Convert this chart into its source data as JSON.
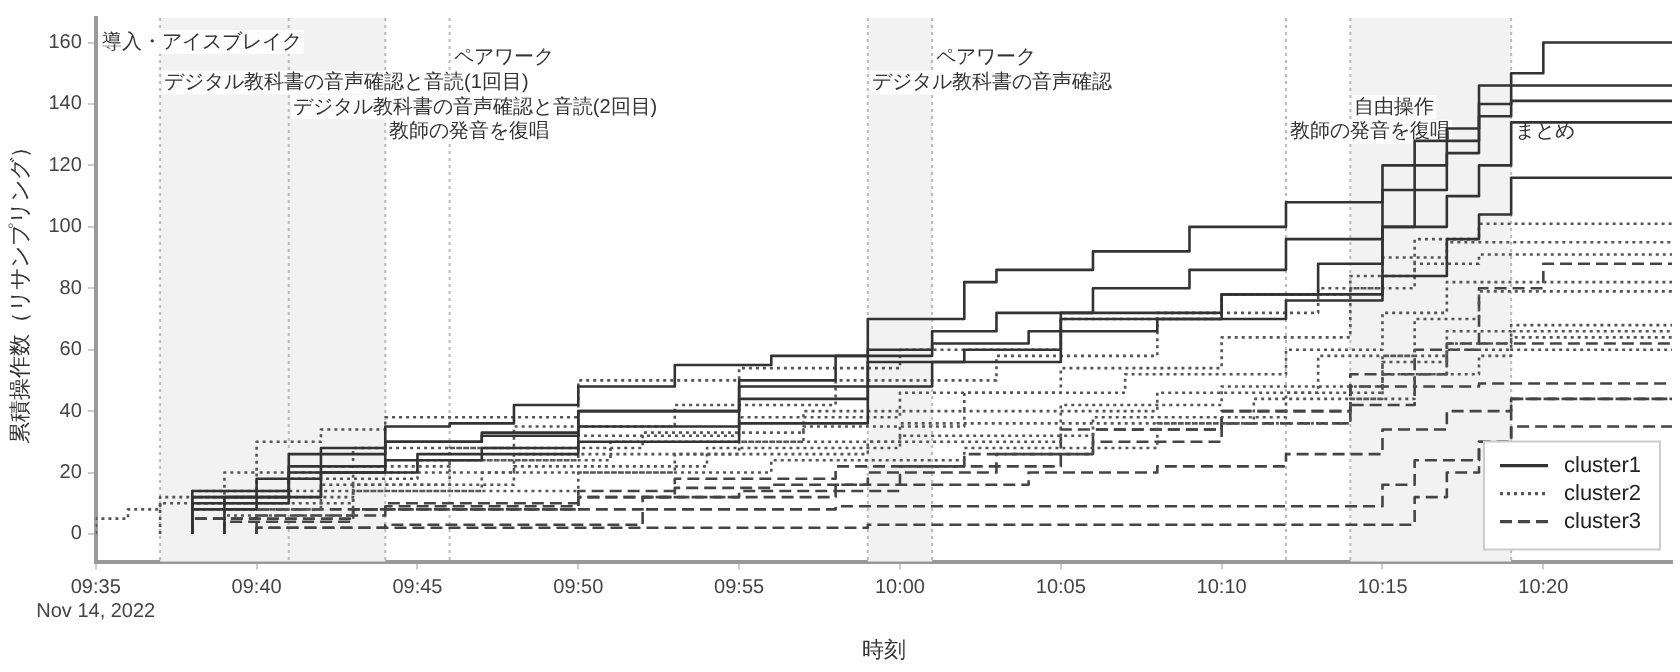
{
  "chart_data": {
    "type": "step",
    "xlabel": "時刻",
    "ylabel": "累積操作数（リサンプリング）",
    "xlim": [
      "2022-11-14T09:35",
      "2022-11-14T10:24"
    ],
    "xticks": [
      {
        "value": "2022-11-14T09:35",
        "label": "09:35\nNov 14, 2022"
      },
      {
        "value": "2022-11-14T09:40",
        "label": "09:40"
      },
      {
        "value": "2022-11-14T09:45",
        "label": "09:45"
      },
      {
        "value": "2022-11-14T09:50",
        "label": "09:50"
      },
      {
        "value": "2022-11-14T09:55",
        "label": "09:55"
      },
      {
        "value": "2022-11-14T10:00",
        "label": "10:00"
      },
      {
        "value": "2022-11-14T10:05",
        "label": "10:05"
      },
      {
        "value": "2022-11-14T10:10",
        "label": "10:10"
      },
      {
        "value": "2022-11-14T10:15",
        "label": "10:15"
      },
      {
        "value": "2022-11-14T10:20",
        "label": "10:20"
      }
    ],
    "ylim": [
      -9,
      168
    ],
    "yticks": [
      0,
      20,
      40,
      60,
      80,
      100,
      120,
      140,
      160
    ],
    "grid": false,
    "legend": "bottom right",
    "marker": "none",
    "bands": [
      {
        "axis": "x",
        "from": "2022-11-14T09:37",
        "to": "2022-11-14T09:44",
        "color": "#f2f2f2"
      },
      {
        "axis": "x",
        "from": "2022-11-14T09:59",
        "to": "2022-11-14T10:01",
        "color": "#f2f2f2"
      },
      {
        "axis": "x",
        "from": "2022-11-14T10:14",
        "to": "2022-11-14T10:19",
        "color": "#f2f2f2"
      }
    ],
    "ref_lines": [
      {
        "axis": "x",
        "value": "2022-11-14T09:37",
        "color": "#bbbbbb",
        "line_style": "dotted"
      },
      {
        "axis": "x",
        "value": "2022-11-14T09:41",
        "color": "#bbbbbb",
        "line_style": "dotted"
      },
      {
        "axis": "x",
        "value": "2022-11-14T09:44",
        "color": "#bbbbbb",
        "line_style": "dotted"
      },
      {
        "axis": "x",
        "value": "2022-11-14T09:46",
        "color": "#bbbbbb",
        "line_style": "dotted"
      },
      {
        "axis": "x",
        "value": "2022-11-14T09:59",
        "color": "#bbbbbb",
        "line_style": "dotted"
      },
      {
        "axis": "x",
        "value": "2022-11-14T10:01",
        "color": "#bbbbbb",
        "line_style": "dotted"
      },
      {
        "axis": "x",
        "value": "2022-11-14T10:12",
        "color": "#bbbbbb",
        "line_style": "dotted"
      },
      {
        "axis": "x",
        "value": "2022-11-14T10:14",
        "color": "#bbbbbb",
        "line_style": "dotted"
      },
      {
        "axis": "x",
        "value": "2022-11-14T10:19",
        "color": "#bbbbbb",
        "line_style": "dotted"
      }
    ],
    "annotations": [
      "導入・アイスブレイク",
      {
        "text": "デジタル教科書の音声確認と音読(1回目)",
        "x": "2022-11-14T09:37",
        "y": 147
      },
      {
        "text": "デジタル教科書の音声確認と音読(2回目)",
        "x": "2022-11-14T09:41",
        "y": 139
      },
      {
        "text": "教師の発音を復唱",
        "x": "2022-11-14T09:44",
        "y": 131
      },
      {
        "text": "ペアワーク",
        "x": "2022-11-14T09:46",
        "y": 155
      },
      {
        "text": "ペアワーク",
        "x": "2022-11-14T10:01",
        "y": 155
      },
      {
        "text": "デジタル教科書の音声確認",
        "x": "2022-11-14T09:59",
        "y": 147
      },
      {
        "text": "自由操作",
        "x": "2022-11-14T10:14",
        "y": 139
      },
      {
        "text": "教師の発音を復唱",
        "x": "2022-11-14T10:12",
        "y": 131
      },
      {
        "text": "まとめ",
        "x": "2022-11-14T10:19",
        "y": 131
      }
    ],
    "series": [
      {
        "name": "cluster1",
        "color": "#333333",
        "line_style": "solid",
        "x": [
          "2022-11-14T09:38",
          "2022-11-14T09:40",
          "2022-11-14T09:42",
          "2022-11-14T09:44",
          "2022-11-14T09:46",
          "2022-11-14T09:48",
          "2022-11-14T09:50",
          "2022-11-14T09:53",
          "2022-11-14T09:56",
          "2022-11-14T09:59",
          "2022-11-14T10:02",
          "2022-11-14T10:03",
          "2022-11-14T10:06",
          "2022-11-14T10:09",
          "2022-11-14T10:12",
          "2022-11-14T10:15",
          "2022-11-14T10:17",
          "2022-11-14T10:18",
          "2022-11-14T10:19",
          "2022-11-14T10:20",
          "2022-11-14T10:22",
          "2022-11-14T10:24"
        ],
        "values": [
          0,
          8,
          18,
          28,
          35,
          36,
          42,
          48,
          55,
          58,
          70,
          82,
          86,
          92,
          100,
          108,
          120,
          132,
          146,
          150,
          160,
          160
        ]
      },
      {
        "color": "#333333",
        "line_style": "solid",
        "x": [
          "2022-11-14T09:38",
          "2022-11-14T09:41",
          "2022-11-14T09:44",
          "2022-11-14T09:47",
          "2022-11-14T09:50",
          "2022-11-14T09:55",
          "2022-11-14T09:59",
          "2022-11-14T10:01",
          "2022-11-14T10:03",
          "2022-11-14T10:06",
          "2022-11-14T10:09",
          "2022-11-14T10:12",
          "2022-11-14T10:15",
          "2022-11-14T10:16",
          "2022-11-14T10:18",
          "2022-11-14T10:19",
          "2022-11-14T10:20",
          "2022-11-14T10:24"
        ],
        "values": [
          0,
          12,
          22,
          30,
          32,
          40,
          48,
          60,
          66,
          72,
          80,
          86,
          96,
          112,
          128,
          140,
          146,
          146
        ]
      },
      {
        "color": "#333333",
        "line_style": "solid",
        "x": [
          "2022-11-14T09:38",
          "2022-11-14T09:41",
          "2022-11-14T09:44",
          "2022-11-14T09:47",
          "2022-11-14T09:50",
          "2022-11-14T09:55",
          "2022-11-14T09:59",
          "2022-11-14T10:02",
          "2022-11-14T10:05",
          "2022-11-14T10:10",
          "2022-11-14T10:13",
          "2022-11-14T10:15",
          "2022-11-14T10:16",
          "2022-11-14T10:17",
          "2022-11-14T10:18",
          "2022-11-14T10:19",
          "2022-11-14T10:20",
          "2022-11-14T10:24"
        ],
        "values": [
          0,
          10,
          20,
          24,
          28,
          35,
          44,
          56,
          60,
          72,
          78,
          88,
          100,
          112,
          124,
          136,
          141,
          141
        ]
      },
      {
        "color": "#333333",
        "line_style": "solid",
        "x": [
          "2022-11-14T09:38",
          "2022-11-14T09:41",
          "2022-11-14T09:44",
          "2022-11-14T09:47",
          "2022-11-14T09:50",
          "2022-11-14T09:55",
          "2022-11-14T09:58",
          "2022-11-14T10:01",
          "2022-11-14T10:04",
          "2022-11-14T10:08",
          "2022-11-14T10:12",
          "2022-11-14T10:15",
          "2022-11-14T10:17",
          "2022-11-14T10:18",
          "2022-11-14T10:19",
          "2022-11-14T10:20",
          "2022-11-14T10:24"
        ],
        "values": [
          0,
          14,
          26,
          30,
          33,
          40,
          50,
          58,
          62,
          66,
          70,
          76,
          100,
          110,
          120,
          134,
          134
        ]
      },
      {
        "color": "#333333",
        "line_style": "solid",
        "x": [
          "2022-11-14T09:39",
          "2022-11-14T09:42",
          "2022-11-14T09:45",
          "2022-11-14T09:50",
          "2022-11-14T09:55",
          "2022-11-14T09:59",
          "2022-11-14T10:01",
          "2022-11-14T10:05",
          "2022-11-14T10:10",
          "2022-11-14T10:15",
          "2022-11-14T10:17",
          "2022-11-14T10:18",
          "2022-11-14T10:19",
          "2022-11-14T10:20",
          "2022-11-14T10:24"
        ],
        "values": [
          0,
          12,
          20,
          26,
          30,
          36,
          48,
          56,
          70,
          78,
          84,
          96,
          104,
          116,
          116
        ]
      },
      {
        "name": "cluster2",
        "color": "#555555",
        "line_style": "dotted",
        "x": [
          "2022-11-14T09:35",
          "2022-11-14T09:36",
          "2022-11-14T09:37",
          "2022-11-14T09:39",
          "2022-11-14T09:40",
          "2022-11-14T09:42",
          "2022-11-14T09:44",
          "2022-11-14T09:50",
          "2022-11-14T09:55",
          "2022-11-14T10:00",
          "2022-11-14T10:05",
          "2022-11-14T10:10",
          "2022-11-14T10:14",
          "2022-11-14T10:16",
          "2022-11-14T10:18",
          "2022-11-14T10:19",
          "2022-11-14T10:24"
        ],
        "values": [
          0,
          5,
          8,
          10,
          20,
          30,
          34,
          38,
          50,
          54,
          60,
          70,
          78,
          84,
          96,
          101,
          101
        ]
      },
      {
        "color": "#555555",
        "line_style": "dotted",
        "x": [
          "2022-11-14T09:37",
          "2022-11-14T09:40",
          "2022-11-14T09:43",
          "2022-11-14T09:48",
          "2022-11-14T09:53",
          "2022-11-14T09:58",
          "2022-11-14T10:03",
          "2022-11-14T10:08",
          "2022-11-14T10:13",
          "2022-11-14T10:15",
          "2022-11-14T10:17",
          "2022-11-14T10:18",
          "2022-11-14T10:24"
        ],
        "values": [
          0,
          12,
          20,
          28,
          35,
          42,
          50,
          58,
          72,
          80,
          90,
          95,
          95
        ]
      },
      {
        "color": "#555555",
        "line_style": "dotted",
        "x": [
          "2022-11-14T09:38",
          "2022-11-14T09:41",
          "2022-11-14T09:45",
          "2022-11-14T09:50",
          "2022-11-14T09:55",
          "2022-11-14T10:00",
          "2022-11-14T10:05",
          "2022-11-14T10:10",
          "2022-11-14T10:14",
          "2022-11-14T10:16",
          "2022-11-14T10:18",
          "2022-11-14T10:19",
          "2022-11-14T10:24"
        ],
        "values": [
          0,
          10,
          18,
          24,
          32,
          38,
          46,
          54,
          64,
          80,
          88,
          91,
          91
        ]
      },
      {
        "color": "#555555",
        "line_style": "dotted",
        "x": [
          "2022-11-14T09:38",
          "2022-11-14T09:42",
          "2022-11-14T09:46",
          "2022-11-14T09:52",
          "2022-11-14T09:57",
          "2022-11-14T10:02",
          "2022-11-14T10:07",
          "2022-11-14T10:12",
          "2022-11-14T10:15",
          "2022-11-14T10:17",
          "2022-11-14T10:19",
          "2022-11-14T10:24"
        ],
        "values": [
          0,
          14,
          22,
          28,
          33,
          40,
          46,
          52,
          60,
          72,
          82,
          82
        ]
      },
      {
        "color": "#555555",
        "line_style": "dotted",
        "x": [
          "2022-11-14T09:39",
          "2022-11-14T09:42",
          "2022-11-14T09:46",
          "2022-11-14T09:51",
          "2022-11-14T09:57",
          "2022-11-14T10:02",
          "2022-11-14T10:08",
          "2022-11-14T10:13",
          "2022-11-14T10:16",
          "2022-11-14T10:18",
          "2022-11-14T10:19",
          "2022-11-14T10:24"
        ],
        "values": [
          0,
          8,
          16,
          24,
          30,
          35,
          40,
          46,
          58,
          70,
          79,
          79
        ]
      },
      {
        "color": "#555555",
        "line_style": "dotted",
        "x": [
          "2022-11-14T09:38",
          "2022-11-14T09:43",
          "2022-11-14T09:48",
          "2022-11-14T09:55",
          "2022-11-14T10:00",
          "2022-11-14T10:05",
          "2022-11-14T10:10",
          "2022-11-14T10:15",
          "2022-11-14T10:17",
          "2022-11-14T10:19",
          "2022-11-14T10:20",
          "2022-11-14T10:24"
        ],
        "values": [
          0,
          12,
          20,
          26,
          30,
          36,
          42,
          48,
          58,
          66,
          68,
          68
        ]
      },
      {
        "color": "#555555",
        "line_style": "dotted",
        "x": [
          "2022-11-14T09:39",
          "2022-11-14T09:43",
          "2022-11-14T09:48",
          "2022-11-14T09:54",
          "2022-11-14T10:00",
          "2022-11-14T10:06",
          "2022-11-14T10:12",
          "2022-11-14T10:15",
          "2022-11-14T10:17",
          "2022-11-14T10:19",
          "2022-11-14T10:20",
          "2022-11-14T10:24"
        ],
        "values": [
          0,
          10,
          16,
          22,
          28,
          32,
          38,
          46,
          56,
          62,
          66,
          66
        ]
      },
      {
        "color": "#555555",
        "line_style": "dotted",
        "x": [
          "2022-11-14T09:38",
          "2022-11-14T09:42",
          "2022-11-14T09:47",
          "2022-11-14T09:53",
          "2022-11-14T09:59",
          "2022-11-14T10:05",
          "2022-11-14T10:11",
          "2022-11-14T10:15",
          "2022-11-14T10:17",
          "2022-11-14T10:19",
          "2022-11-14T10:20",
          "2022-11-14T10:24"
        ],
        "values": [
          0,
          8,
          14,
          20,
          26,
          30,
          36,
          44,
          52,
          60,
          64,
          64
        ]
      },
      {
        "color": "#555555",
        "line_style": "dotted",
        "x": [
          "2022-11-14T09:39",
          "2022-11-14T09:43",
          "2022-11-14T09:50",
          "2022-11-14T09:56",
          "2022-11-14T10:02",
          "2022-11-14T10:08",
          "2022-11-14T10:14",
          "2022-11-14T10:16",
          "2022-11-14T10:18",
          "2022-11-14T10:19",
          "2022-11-14T10:20",
          "2022-11-14T10:24"
        ],
        "values": [
          0,
          6,
          14,
          20,
          24,
          28,
          36,
          44,
          52,
          58,
          60,
          60
        ]
      },
      {
        "name": "cluster3",
        "color": "#444444",
        "line_style": "dashed",
        "x": [
          "2022-11-14T09:38",
          "2022-11-14T09:40",
          "2022-11-14T09:44",
          "2022-11-14T09:50",
          "2022-11-14T09:53",
          "2022-11-14T09:56",
          "2022-11-14T09:59",
          "2022-11-14T10:03",
          "2022-11-14T10:06",
          "2022-11-14T10:10",
          "2022-11-14T10:14",
          "2022-11-14T10:16",
          "2022-11-14T10:18",
          "2022-11-14T10:20",
          "2022-11-14T10:21",
          "2022-11-14T10:24"
        ],
        "values": [
          0,
          5,
          8,
          9,
          12,
          15,
          16,
          20,
          26,
          34,
          40,
          48,
          60,
          80,
          88,
          88
        ]
      },
      {
        "color": "#444444",
        "line_style": "dashed",
        "x": [
          "2022-11-14T09:40",
          "2022-11-14T09:44",
          "2022-11-14T09:50",
          "2022-11-14T09:53",
          "2022-11-14T09:58",
          "2022-11-14T10:02",
          "2022-11-14T10:06",
          "2022-11-14T10:10",
          "2022-11-14T10:14",
          "2022-11-14T10:16",
          "2022-11-14T10:18",
          "2022-11-14T10:20",
          "2022-11-14T10:24"
        ],
        "values": [
          0,
          6,
          10,
          14,
          18,
          22,
          26,
          30,
          36,
          42,
          48,
          49,
          49
        ]
      },
      {
        "color": "#444444",
        "line_style": "dashed",
        "x": [
          "2022-11-14T09:39",
          "2022-11-14T09:43",
          "2022-11-14T09:52",
          "2022-11-14T09:58",
          "2022-11-14T10:04",
          "2022-11-14T10:08",
          "2022-11-14T10:12",
          "2022-11-14T10:15",
          "2022-11-14T10:17",
          "2022-11-14T10:19",
          "2022-11-14T10:20",
          "2022-11-14T10:24"
        ],
        "values": [
          0,
          4,
          8,
          12,
          16,
          20,
          22,
          26,
          34,
          40,
          44,
          44
        ]
      },
      {
        "color": "#444444",
        "line_style": "dashed",
        "x": [
          "2022-11-14T09:40",
          "2022-11-14T09:44",
          "2022-11-14T09:52",
          "2022-11-14T09:58",
          "2022-11-14T10:01",
          "2022-11-14T10:15",
          "2022-11-14T10:16",
          "2022-11-14T10:18",
          "2022-11-14T10:19",
          "2022-11-14T10:20",
          "2022-11-14T10:24"
        ],
        "values": [
          0,
          2,
          3,
          8,
          9,
          9,
          16,
          24,
          30,
          35,
          35
        ]
      },
      {
        "color": "#444444",
        "line_style": "dashed",
        "x": [
          "2022-11-14T09:40",
          "2022-11-14T09:44",
          "2022-11-14T09:59",
          "2022-11-14T10:01",
          "2022-11-14T10:16",
          "2022-11-14T10:17",
          "2022-11-14T10:18",
          "2022-11-14T10:19",
          "2022-11-14T10:20",
          "2022-11-14T10:24"
        ],
        "values": [
          0,
          2,
          2,
          3,
          3,
          12,
          20,
          30,
          44,
          44
        ]
      },
      {
        "color": "#444444",
        "line_style": "dashed",
        "x": [
          "2022-11-14T09:38",
          "2022-11-14T09:43",
          "2022-11-14T09:50",
          "2022-11-14T09:55",
          "2022-11-14T10:00",
          "2022-11-14T10:05",
          "2022-11-14T10:10",
          "2022-11-14T10:14",
          "2022-11-14T10:17",
          "2022-11-14T10:19",
          "2022-11-14T10:24"
        ],
        "values": [
          0,
          5,
          8,
          12,
          14,
          22,
          34,
          40,
          52,
          62,
          62
        ]
      }
    ]
  }
}
